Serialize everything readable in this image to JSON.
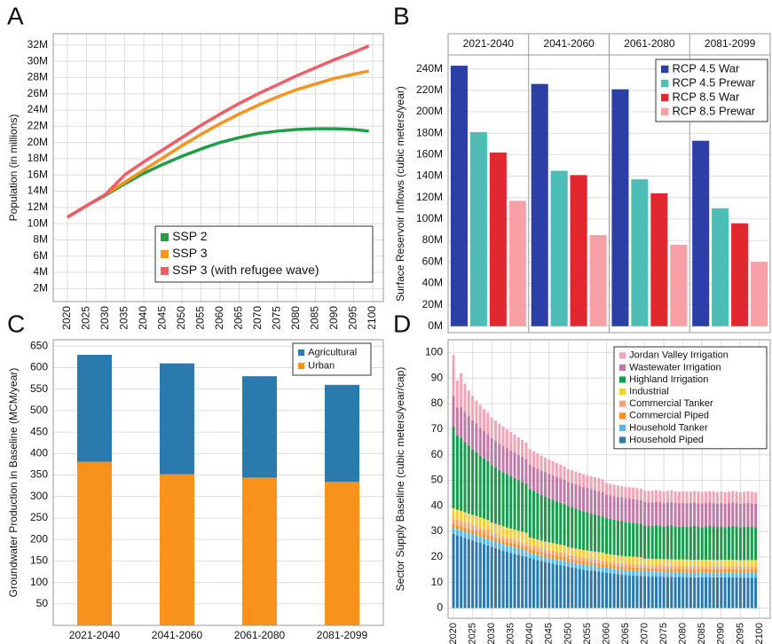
{
  "chart_data": [
    {
      "type": "line",
      "label": "A",
      "y_label": "Population (in millions)",
      "x": [
        2020,
        2025,
        2030,
        2035,
        2040,
        2045,
        2050,
        2055,
        2060,
        2065,
        2070,
        2075,
        2080,
        2085,
        2090,
        2095,
        2099
      ],
      "series": [
        {
          "name": "SSP 2",
          "color": "#1f9e47",
          "values": [
            10.8,
            12.2,
            13.5,
            14.9,
            16.2,
            17.3,
            18.3,
            19.2,
            20.0,
            20.6,
            21.1,
            21.4,
            21.6,
            21.7,
            21.7,
            21.6,
            21.4
          ]
        },
        {
          "name": "SSP 3",
          "color": "#f7941d",
          "values": [
            10.8,
            12.2,
            13.6,
            15.1,
            16.6,
            18.1,
            19.6,
            21.0,
            22.3,
            23.5,
            24.6,
            25.6,
            26.5,
            27.2,
            27.9,
            28.4,
            28.8
          ]
        },
        {
          "name": "SSP 3 (with refugee wave)",
          "color": "#f25c66",
          "values": [
            10.8,
            12.2,
            13.6,
            16.0,
            17.6,
            19.1,
            20.6,
            22.1,
            23.5,
            24.8,
            26.0,
            27.1,
            28.2,
            29.2,
            30.2,
            31.1,
            31.9
          ]
        }
      ],
      "xlim": [
        2016.3,
        2102.8
      ],
      "xticks": [
        2020,
        2025,
        2030,
        2035,
        2040,
        2045,
        2050,
        2055,
        2060,
        2065,
        2070,
        2075,
        2080,
        2085,
        2090,
        2095,
        2100
      ],
      "ylim": [
        0.4,
        33.4
      ],
      "yticks": [
        {
          "value": 2,
          "label": "2M"
        },
        {
          "value": 4,
          "label": "4M"
        },
        {
          "value": 6,
          "label": "6M"
        },
        {
          "value": 8,
          "label": "8M"
        },
        {
          "value": 10,
          "label": "10M"
        },
        {
          "value": 12,
          "label": "12M"
        },
        {
          "value": 14,
          "label": "14M"
        },
        {
          "value": 16,
          "label": "16M"
        },
        {
          "value": 18,
          "label": "18M"
        },
        {
          "value": 20,
          "label": "20M"
        },
        {
          "value": 22,
          "label": "22M"
        },
        {
          "value": 24,
          "label": "24M"
        },
        {
          "value": 26,
          "label": "26M"
        },
        {
          "value": 28,
          "label": "28M"
        },
        {
          "value": 30,
          "label": "30M"
        },
        {
          "value": 32,
          "label": "32M"
        }
      ],
      "grid": true,
      "legend": "lower right"
    },
    {
      "type": "grouped_bar",
      "label": "B",
      "y_label": "Surface Reservoir Inflows (cubic meters/year)",
      "categories": [
        "2021-2040",
        "2041-2060",
        "2061-2080",
        "2081-2099"
      ],
      "series": [
        {
          "name": "RCP 4.5 War",
          "color": "#2b3fa6",
          "values": [
            243,
            226,
            221,
            173
          ]
        },
        {
          "name": "RCP 4.5 Prewar",
          "color": "#4dbdb5",
          "values": [
            181,
            145,
            137,
            110
          ]
        },
        {
          "name": "RCP 8.5 War",
          "color": "#e0282e",
          "values": [
            162,
            141,
            124,
            96
          ]
        },
        {
          "name": "RCP 8.5 Prewar",
          "color": "#f7a1a7",
          "values": [
            117,
            85,
            76,
            60
          ]
        }
      ],
      "ylim": [
        -6,
        253
      ],
      "yticks": [
        {
          "value": 0,
          "label": "0M"
        },
        {
          "value": 20,
          "label": "20M"
        },
        {
          "value": 40,
          "label": "40M"
        },
        {
          "value": 60,
          "label": "60M"
        },
        {
          "value": 80,
          "label": "80M"
        },
        {
          "value": 100,
          "label": "100M"
        },
        {
          "value": 120,
          "label": "120M"
        },
        {
          "value": 140,
          "label": "140M"
        },
        {
          "value": 160,
          "label": "160M"
        },
        {
          "value": 180,
          "label": "180M"
        },
        {
          "value": 200,
          "label": "200M"
        },
        {
          "value": 220,
          "label": "220M"
        },
        {
          "value": 240,
          "label": "240M"
        }
      ],
      "grid": true,
      "legend": "upper right"
    },
    {
      "type": "stacked_bar",
      "label": "C",
      "y_label": "Groundwater Production in Baseline (MCM/year)",
      "categories": [
        "2021-2040",
        "2041-2060",
        "2061-2080",
        "2081-2099"
      ],
      "series": [
        {
          "name": "Agricultural",
          "color": "#2a7aad",
          "values": [
            249,
            258,
            236,
            226
          ]
        },
        {
          "name": "Urban",
          "color": "#f9921c",
          "values": [
            381,
            352,
            344,
            334
          ]
        }
      ],
      "ylim": [
        0,
        665
      ],
      "yticks": [
        50,
        100,
        150,
        200,
        250,
        300,
        350,
        400,
        450,
        500,
        550,
        600,
        650
      ],
      "grid": true,
      "legend": "upper right"
    },
    {
      "type": "stacked_bar",
      "label": "D",
      "y_label": "Sector Supply Baseline (cubic meters/year/cap)",
      "x": [
        2020,
        2021,
        2022,
        2023,
        2024,
        2025,
        2026,
        2027,
        2028,
        2029,
        2030,
        2031,
        2032,
        2033,
        2034,
        2035,
        2036,
        2037,
        2038,
        2039,
        2040,
        2041,
        2042,
        2043,
        2044,
        2045,
        2046,
        2047,
        2048,
        2049,
        2050,
        2051,
        2052,
        2053,
        2054,
        2055,
        2056,
        2057,
        2058,
        2059,
        2060,
        2061,
        2062,
        2063,
        2064,
        2065,
        2066,
        2067,
        2068,
        2069,
        2070,
        2071,
        2072,
        2073,
        2074,
        2075,
        2076,
        2077,
        2078,
        2079,
        2080,
        2081,
        2082,
        2083,
        2084,
        2085,
        2086,
        2087,
        2088,
        2089,
        2090,
        2091,
        2092,
        2093,
        2094,
        2095,
        2096,
        2097,
        2098,
        2099
      ],
      "series": [
        {
          "name": "Jordan Valley Irrigation",
          "color": "#f4a5b5",
          "values": [
            16,
            10.5,
            13.5,
            11,
            10,
            9.5,
            9,
            9,
            8.5,
            8.5,
            8,
            8,
            7.8,
            7.6,
            7.4,
            7.2,
            7,
            6.8,
            6.6,
            6.4,
            6.2,
            6,
            6,
            5.8,
            5.8,
            5.6,
            5.6,
            5.4,
            5.4,
            5.2,
            5,
            5,
            5,
            5,
            5,
            5,
            5,
            5,
            5,
            5,
            4.5,
            4.5,
            4.5,
            4.5,
            4.5,
            4.5,
            4.5,
            4.5,
            4.5,
            4.5,
            4.5,
            4.5,
            4.5,
            4.5,
            4.5,
            4.5,
            4.5,
            4.5,
            4.5,
            4.5,
            4.5,
            4.5,
            4.5,
            4.5,
            4.5,
            4.5,
            4.5,
            4.5,
            4.5,
            4.5,
            4.5,
            4.5,
            4.5,
            4.5,
            4.5,
            4.5,
            4.5,
            4.5,
            4.5,
            4.5
          ]
        },
        {
          "name": "Wastewater Irrigation",
          "color": "#c07aa8",
          "values": [
            12,
            11,
            12,
            11.8,
            11.6,
            11.4,
            11.2,
            11,
            10.8,
            10.6,
            10.5,
            10.4,
            10.3,
            10.2,
            10.1,
            10,
            10,
            9.9,
            9.8,
            9.7,
            9.5,
            9.5,
            9.5,
            9.5,
            9.5,
            9.5,
            9.5,
            9.5,
            9.5,
            9.5,
            9.5,
            9.5,
            9.5,
            9.5,
            9.5,
            9.5,
            9.5,
            9.5,
            9.5,
            9.5,
            9.2,
            9.2,
            9.2,
            9.2,
            9.2,
            9.2,
            9.2,
            9.2,
            9.2,
            9.2,
            9.2,
            9.2,
            9.2,
            9.2,
            9.2,
            9.2,
            9.2,
            9.2,
            9.2,
            9.2,
            9.2,
            9.2,
            9.2,
            9.2,
            9.2,
            9.2,
            9.2,
            9.2,
            9.2,
            9.2,
            9.2,
            9.2,
            9.2,
            9.2,
            9.2,
            9.2,
            9.2,
            9.2,
            9.2,
            9.2
          ]
        },
        {
          "name": "Highland Irrigation",
          "color": "#1a9b4c",
          "values": [
            32,
            29,
            28.5,
            27.5,
            26.5,
            25.5,
            25,
            24,
            23.5,
            23,
            22.5,
            22,
            21.5,
            21.2,
            21,
            20.6,
            20.2,
            19.8,
            19.5,
            19.2,
            19,
            18.6,
            18.2,
            17.9,
            17.6,
            17.3,
            17,
            16.7,
            16.4,
            16.2,
            16,
            15.8,
            15.6,
            15.4,
            15.2,
            15,
            14.8,
            14.6,
            14.4,
            14.2,
            14,
            13.9,
            13.8,
            13.7,
            13.6,
            13.5,
            13.4,
            13.3,
            13.2,
            13.1,
            13,
            12.8,
            13,
            13.2,
            13,
            12.8,
            13,
            13.2,
            13,
            12.8,
            13,
            12.8,
            13,
            13.2,
            13,
            12.8,
            13,
            13.2,
            13,
            12.8,
            13,
            12.8,
            13,
            13.2,
            13,
            12.8,
            13,
            13.2,
            13,
            12.8
          ]
        },
        {
          "name": "Industrial",
          "color": "#f7cd3b",
          "values": [
            4,
            4,
            4,
            4,
            4,
            4,
            4,
            4,
            4,
            4,
            4,
            4,
            4,
            4,
            4,
            4,
            4,
            4,
            4,
            4,
            3,
            3,
            3,
            3,
            3,
            3,
            3,
            3,
            3,
            3,
            3,
            3,
            3,
            3,
            3,
            3,
            3,
            3,
            3,
            3,
            3,
            3,
            3,
            3,
            3,
            3,
            3,
            3,
            3,
            3,
            2.5,
            2.5,
            2.5,
            2.5,
            2.5,
            2.5,
            2.5,
            2.5,
            2.5,
            2.5,
            2.5,
            2.5,
            2.5,
            2.5,
            2.5,
            2.5,
            2.5,
            2.5,
            2.5,
            2.5,
            2.5,
            2.5,
            2.5,
            2.5,
            2.5,
            2.5,
            2.5,
            2.5,
            2.5,
            2.5
          ]
        },
        {
          "name": "Commercial Tanker",
          "color": "#f9a27a",
          "values": [
            2,
            2,
            2,
            2,
            2,
            2,
            2,
            2,
            2,
            2,
            1.5,
            1.5,
            1.5,
            1.5,
            1.5,
            1.5,
            1.5,
            1.5,
            1.5,
            1.5,
            1.5,
            1.5,
            1.5,
            1.5,
            1.5,
            1.5,
            1.5,
            1.5,
            1.5,
            1.5,
            1.5,
            1.5,
            1.5,
            1.5,
            1.5,
            1.5,
            1.5,
            1.5,
            1.5,
            1.5,
            1.2,
            1.2,
            1.2,
            1.2,
            1.2,
            1.2,
            1.2,
            1.2,
            1.2,
            1.2,
            1.2,
            1.2,
            1.2,
            1.2,
            1.2,
            1.2,
            1.2,
            1.2,
            1.2,
            1.2,
            1.2,
            1.2,
            1.2,
            1.2,
            1.2,
            1.2,
            1.2,
            1.2,
            1.2,
            1.2,
            1.2,
            1.2,
            1.2,
            1.2,
            1.2,
            1.2,
            1.2,
            1.2,
            1.2,
            1.2
          ]
        },
        {
          "name": "Commercial Piped",
          "color": "#f78f1e",
          "values": [
            1.5,
            1.5,
            1.5,
            1.5,
            1.5,
            1.5,
            1.5,
            1.5,
            1.5,
            1.5,
            1.5,
            1.5,
            1.5,
            1.5,
            1.5,
            1.5,
            1.5,
            1.5,
            1.5,
            1.5,
            1.5,
            1.5,
            1.5,
            1.5,
            1.5,
            1.5,
            1.5,
            1.5,
            1.5,
            1.5,
            1.2,
            1.2,
            1.2,
            1.2,
            1.2,
            1.2,
            1.2,
            1.2,
            1.2,
            1.2,
            1.2,
            1.2,
            1.2,
            1.2,
            1.2,
            1.2,
            1.2,
            1.2,
            1.2,
            1.2,
            1.2,
            1.2,
            1.2,
            1.2,
            1.2,
            1.2,
            1.2,
            1.2,
            1.2,
            1.2,
            1.2,
            1.2,
            1.2,
            1.2,
            1.2,
            1.2,
            1.2,
            1.2,
            1.2,
            1.2,
            1.2,
            1.2,
            1.2,
            1.2,
            1.2,
            1.2,
            1.2,
            1.2,
            1.2,
            1.2
          ]
        },
        {
          "name": "Household Tanker",
          "color": "#55b6e8",
          "values": [
            2.5,
            2.5,
            2.5,
            2.5,
            2.5,
            2.5,
            2.5,
            2.5,
            2.5,
            2.5,
            2.5,
            2.5,
            2.5,
            2.5,
            2.5,
            2.5,
            2.5,
            2.5,
            2.5,
            2.5,
            2,
            2,
            2,
            2,
            2,
            2,
            2,
            2,
            2,
            2,
            2,
            2,
            2,
            2,
            2,
            2,
            2,
            2,
            2,
            2,
            2,
            2,
            2,
            2,
            2,
            2,
            2,
            2,
            2,
            2,
            2,
            2,
            2,
            2,
            2,
            2,
            2,
            2,
            2,
            2,
            2,
            2,
            2,
            2,
            2,
            2,
            2,
            2,
            2,
            2,
            2,
            2,
            2,
            2,
            2,
            2,
            2,
            2,
            2,
            2
          ]
        },
        {
          "name": "Household Piped",
          "color": "#2b78ad",
          "values": [
            29,
            28.5,
            28,
            27.5,
            27,
            26.5,
            26,
            25.5,
            25,
            24.5,
            24,
            23.5,
            23,
            22.5,
            22,
            21.6,
            21.2,
            20.8,
            20.4,
            20,
            19.6,
            19.2,
            18.8,
            18.4,
            18,
            17.7,
            17.4,
            17.1,
            16.8,
            16.5,
            16.2,
            15.9,
            15.6,
            15.3,
            15,
            14.8,
            14.6,
            14.4,
            14.2,
            14,
            13.8,
            13.6,
            13.4,
            13.2,
            13,
            12.9,
            12.8,
            12.7,
            12.6,
            12.5,
            12.4,
            12.4,
            12.3,
            12.3,
            12.3,
            12.2,
            12.2,
            12.2,
            12.1,
            12.1,
            12.1,
            12.1,
            12,
            12,
            12,
            12,
            12,
            12,
            12,
            12,
            12,
            12,
            12,
            12,
            12,
            11.9,
            11.9,
            11.9,
            11.9,
            11.9
          ]
        }
      ],
      "xlim": [
        2018.6,
        2102.8
      ],
      "xticks": [
        2020,
        2025,
        2030,
        2035,
        2040,
        2045,
        2050,
        2055,
        2060,
        2065,
        2070,
        2075,
        2080,
        2085,
        2090,
        2095,
        2100
      ],
      "ylim": [
        -4,
        105
      ],
      "yticks": [
        0,
        10,
        20,
        30,
        40,
        50,
        60,
        70,
        80,
        90,
        100
      ],
      "grid": true,
      "legend": "upper right"
    }
  ]
}
